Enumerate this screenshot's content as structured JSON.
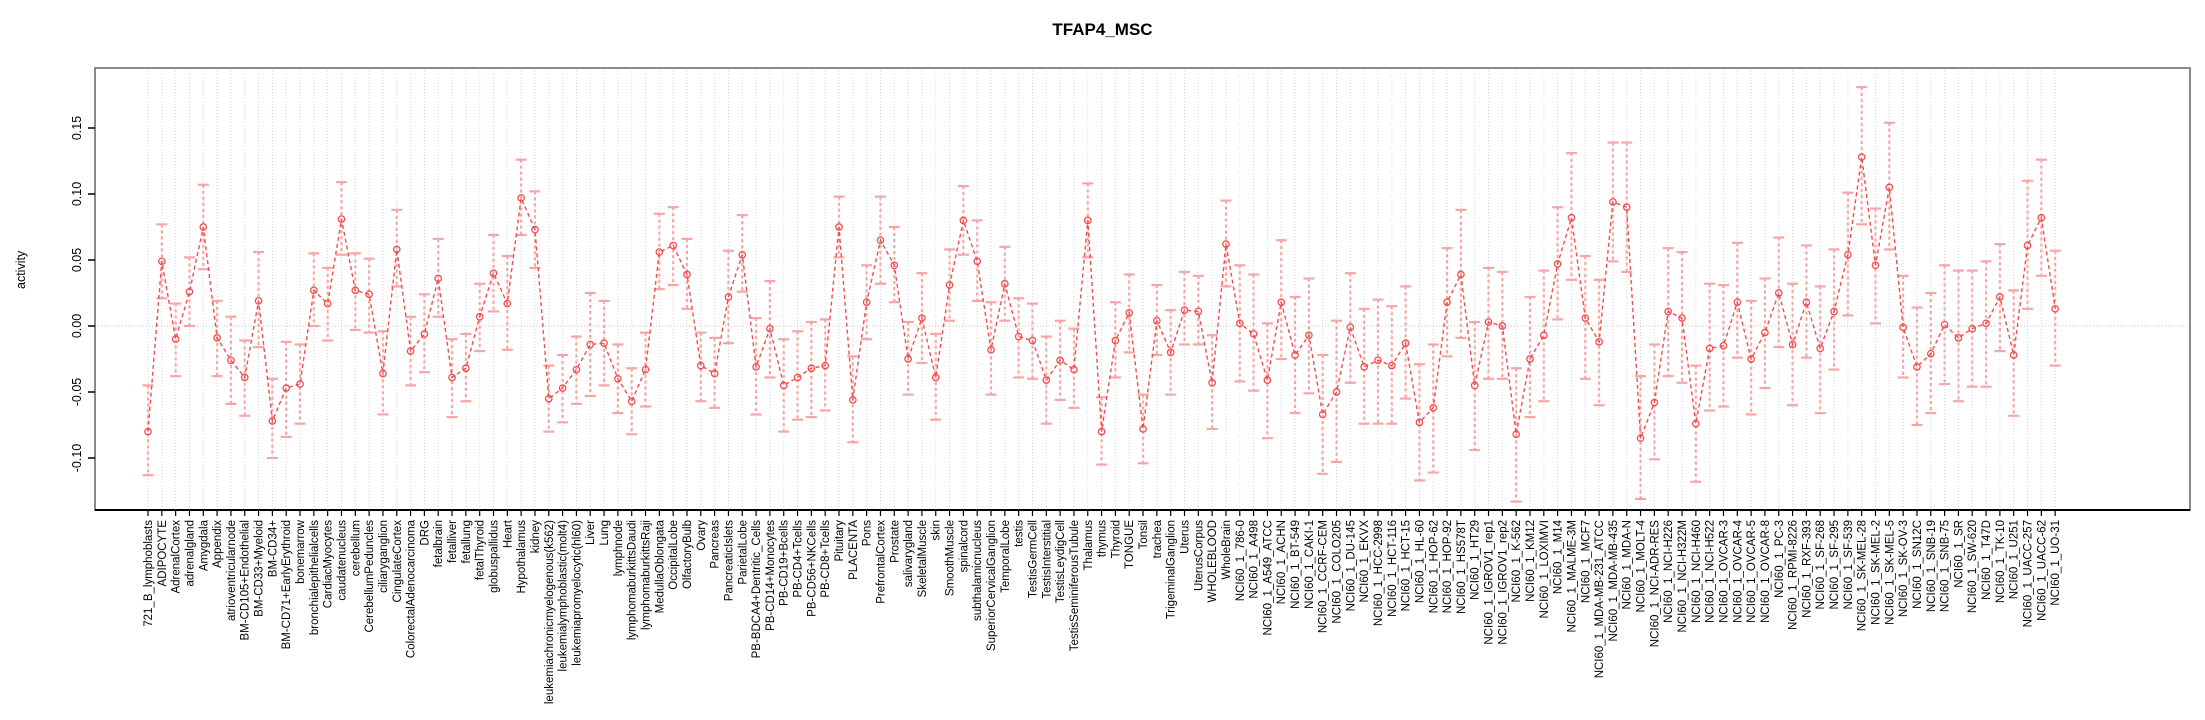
{
  "title": "TFAP4_MSC",
  "colors": {
    "series": "#ef4f4f",
    "error_bar": "#f7a6a6",
    "grid": "#d6d6d6",
    "zero_line": "#c9c9c9",
    "box": "#8a8a8a",
    "axis": "#000000",
    "background": "#ffffff"
  },
  "chart_data": {
    "type": "line",
    "title": "TFAP4_MSC",
    "xlabel": "",
    "ylabel": "activity",
    "ylim": [
      -0.139,
      0.195
    ],
    "yticks": [
      0.15,
      0.1,
      0.05,
      0.0,
      -0.05,
      -0.1
    ],
    "grid": "vertical dotted gridline at every category; dotted horizontal line at y=0",
    "legend": "none",
    "marker": "open-circle",
    "line_style": "dashed",
    "error_bars": true,
    "categories": [
      "721_B_lymphoblasts",
      "ADIPOCYTE",
      "AdrenalCortex",
      "adrenalgland",
      "Amygdala",
      "Appendix",
      "atrioventricularnode",
      "BM-CD105+Endothelial",
      "BM-CD33+Myeloid",
      "BM-CD34+",
      "BM-CD71+EarlyErythroid",
      "bonemarrow",
      "bronchialepithelialcells",
      "CardiacMyocytes",
      "caudatenucleus",
      "cerebellum",
      "CerebellumPeduncles",
      "ciliaryganglion",
      "CingulateCortex",
      "ColorectalAdenocarcinoma",
      "DRG",
      "fetalbrain",
      "fetalliver",
      "fetallung",
      "fetalThyroid",
      "globuspallidus",
      "Heart",
      "Hypothalamus",
      "kidney",
      "leukemiachronicmyelogenous(k562)",
      "leukemialymphoblastic(molt4)",
      "leukemiapromyelocytic(hl60)",
      "Liver",
      "Lung",
      "lymphnode",
      "lymphomaburkittsDaudi",
      "lymphomaburkittsRaji",
      "MedullaOblongata",
      "OccipitalLobe",
      "OlfactoryBulb",
      "Ovary",
      "Pancreas",
      "PancreaticIslets",
      "ParietalLobe",
      "PB-BDCA4+Dentritic_Cells",
      "PB-CD14+Monocytes",
      "PB-CD19+Bcells",
      "PB-CD4+Tcells",
      "PB-CD56+NKCells",
      "PB-CD8+Tcells",
      "Pituitary",
      "PLACENTA",
      "Pons",
      "PrefrontalCortex",
      "Prostate",
      "salivarygland",
      "SkeletalMuscle",
      "skin",
      "SmoothMuscle",
      "spinalcord",
      "subthalamicnucleus",
      "SuperiorCervicalGanglion",
      "TemporalLobe",
      "testis",
      "TestisGermCell",
      "TestisInterstitial",
      "TestisLeydigCell",
      "TestisSeminiferousTubule",
      "Thalamus",
      "thymus",
      "Thyroid",
      "TONGUE",
      "Tonsil",
      "trachea",
      "TrigeminalGanglion",
      "Uterus",
      "UterusCorpus",
      "WHOLEBLOOD",
      "WholeBrain",
      "NCI60_1_786-0",
      "NCI60_1_A498",
      "NCI60_1_A549_ATCC",
      "NCI60_1_ACHN",
      "NCI60_1_BT-549",
      "NCI60_1_CAKI-1",
      "NCI60_1_CCRF-CEM",
      "NCI60_1_COLO205",
      "NCI60_1_DU-145",
      "NCI60_1_EKVX",
      "NCI60_1_HCC-2998",
      "NCI60_1_HCT-116",
      "NCI60_1_HCT-15",
      "NCI60_1_HL-60",
      "NCI60_1_HOP-62",
      "NCI60_1_HOP-92",
      "NCI60_1_HS578T",
      "NCI60_1_HT29",
      "NCI60_1_IGROV1_rep1",
      "NCI60_1_IGROV1_rep2",
      "NCI60_1_K-562",
      "NCI60_1_KM12",
      "NCI60_1_LOXIMVI",
      "NCI60_1_M14",
      "NCI60_1_MALME-3M",
      "NCI60_1_MCF7",
      "NCI60_1_MDA-MB-231_ATCC",
      "NCI60_1_MDA-MB-435",
      "NCI60_1_MDA-N",
      "NCI60_1_MOLT-4",
      "NCI60_1_NCI-ADR-RES",
      "NCI60_1_NCI-H226",
      "NCI60_1_NCI-H322M",
      "NCI60_1_NCI-H460",
      "NCI60_1_NCI-H522",
      "NCI60_1_OVCAR-3",
      "NCI60_1_OVCAR-4",
      "NCI60_1_OVCAR-5",
      "NCI60_1_OVCAR-8",
      "NCI60_1_PC-3",
      "NCI60_1_RPMI-8226",
      "NCI60_1_RXF-393",
      "NCI60_1_SF-268",
      "NCI60_1_SF-295",
      "NCI60_1_SF-539",
      "NCI60_1_SK-MEL-28",
      "NCI60_1_SK-MEL-2",
      "NCI60_1_SK-MEL-5",
      "NCI60_1_SK-OV-3",
      "NCI60_1_SN12C",
      "NCI60_1_SNB-19",
      "NCI60_1_SNB-75",
      "NCI60_1_SR",
      "NCI60_1_SW-620",
      "NCI60_1_T47D",
      "NCI60_1_TK-10",
      "NCI60_1_U251",
      "NCI60_1_UACC-257",
      "NCI60_1_UACC-62",
      "NCI60_1_UO-31"
    ],
    "series": [
      {
        "name": "activity",
        "values": [
          -0.08,
          0.049,
          -0.01,
          0.026,
          0.075,
          -0.009,
          -0.026,
          -0.039,
          0.019,
          -0.072,
          -0.047,
          -0.044,
          0.027,
          0.017,
          0.081,
          0.027,
          0.024,
          -0.036,
          0.058,
          -0.019,
          -0.006,
          0.036,
          -0.039,
          -0.032,
          0.007,
          0.04,
          0.017,
          0.097,
          0.073,
          -0.055,
          -0.047,
          -0.033,
          -0.014,
          -0.013,
          -0.04,
          -0.057,
          -0.033,
          0.056,
          0.061,
          0.039,
          -0.03,
          -0.036,
          0.022,
          0.054,
          -0.031,
          -0.002,
          -0.045,
          -0.039,
          -0.032,
          -0.03,
          0.075,
          -0.056,
          0.018,
          0.065,
          0.046,
          -0.025,
          0.006,
          -0.039,
          0.031,
          0.08,
          0.049,
          -0.018,
          0.032,
          -0.008,
          -0.011,
          -0.041,
          -0.026,
          -0.033,
          0.08,
          -0.08,
          -0.011,
          0.01,
          -0.078,
          0.004,
          -0.02,
          0.012,
          0.011,
          -0.043,
          0.062,
          0.002,
          -0.006,
          -0.041,
          0.018,
          -0.022,
          -0.007,
          -0.067,
          -0.05,
          -0.001,
          -0.031,
          -0.026,
          -0.03,
          -0.013,
          -0.073,
          -0.062,
          0.018,
          0.039,
          -0.045,
          0.003,
          0.0,
          -0.082,
          -0.025,
          -0.007,
          0.047,
          0.082,
          0.006,
          -0.012,
          0.094,
          0.09,
          -0.085,
          -0.058,
          0.011,
          0.006,
          -0.074,
          -0.017,
          -0.015,
          0.018,
          -0.025,
          -0.005,
          0.025,
          -0.014,
          0.018,
          -0.017,
          0.011,
          0.054,
          0.128,
          0.046,
          0.105,
          -0.001,
          -0.031,
          -0.021,
          0.001,
          -0.009,
          -0.002,
          0.002,
          0.022,
          -0.022,
          0.061,
          0.082,
          0.013
        ],
        "error_low": [
          -0.113,
          0.021,
          -0.038,
          0.0,
          0.043,
          -0.038,
          -0.059,
          -0.068,
          -0.016,
          -0.1,
          -0.084,
          -0.074,
          0.0,
          -0.011,
          0.054,
          -0.003,
          -0.005,
          -0.067,
          0.03,
          -0.045,
          -0.035,
          0.007,
          -0.069,
          -0.057,
          -0.019,
          0.011,
          -0.018,
          0.069,
          0.044,
          -0.08,
          -0.073,
          -0.059,
          -0.053,
          -0.045,
          -0.066,
          -0.082,
          -0.061,
          0.028,
          0.031,
          0.013,
          -0.057,
          -0.062,
          -0.013,
          0.026,
          -0.067,
          -0.039,
          -0.08,
          -0.071,
          -0.069,
          -0.064,
          0.052,
          -0.088,
          -0.01,
          0.032,
          0.018,
          -0.052,
          -0.028,
          -0.071,
          0.004,
          0.054,
          0.019,
          -0.052,
          0.004,
          -0.039,
          -0.04,
          -0.074,
          -0.056,
          -0.062,
          0.052,
          -0.105,
          -0.039,
          -0.02,
          -0.104,
          -0.022,
          -0.052,
          -0.014,
          -0.014,
          -0.078,
          0.03,
          -0.042,
          -0.049,
          -0.085,
          -0.025,
          -0.066,
          -0.051,
          -0.112,
          -0.103,
          -0.043,
          -0.074,
          -0.074,
          -0.074,
          -0.055,
          -0.117,
          -0.111,
          -0.023,
          -0.009,
          -0.094,
          -0.04,
          -0.04,
          -0.133,
          -0.069,
          -0.057,
          0.005,
          0.035,
          -0.04,
          -0.06,
          0.049,
          0.041,
          -0.131,
          -0.101,
          -0.038,
          -0.043,
          -0.118,
          -0.064,
          -0.061,
          -0.024,
          -0.067,
          -0.047,
          -0.016,
          -0.06,
          -0.024,
          -0.066,
          -0.033,
          0.008,
          0.077,
          0.002,
          0.058,
          -0.039,
          -0.075,
          -0.066,
          -0.044,
          -0.057,
          -0.046,
          -0.046,
          -0.019,
          -0.068,
          0.013,
          0.038,
          -0.03
        ],
        "error_high": [
          -0.045,
          0.077,
          0.017,
          0.052,
          0.107,
          0.019,
          0.007,
          -0.011,
          0.056,
          -0.04,
          -0.012,
          -0.014,
          0.055,
          0.044,
          0.109,
          0.055,
          0.051,
          -0.004,
          0.088,
          0.007,
          0.024,
          0.066,
          -0.01,
          -0.006,
          0.032,
          0.069,
          0.053,
          0.126,
          0.102,
          -0.03,
          -0.022,
          -0.008,
          0.025,
          0.019,
          -0.014,
          -0.032,
          -0.005,
          0.085,
          0.09,
          0.066,
          -0.005,
          -0.009,
          0.057,
          0.084,
          0.006,
          0.034,
          -0.01,
          -0.004,
          0.003,
          0.005,
          0.098,
          -0.023,
          0.046,
          0.098,
          0.075,
          0.003,
          0.04,
          -0.006,
          0.058,
          0.106,
          0.08,
          0.018,
          0.06,
          0.021,
          0.017,
          -0.008,
          0.004,
          -0.002,
          0.108,
          -0.054,
          0.018,
          0.039,
          -0.052,
          0.031,
          0.012,
          0.041,
          0.038,
          -0.007,
          0.095,
          0.046,
          0.039,
          0.002,
          0.065,
          0.022,
          0.036,
          -0.022,
          0.004,
          0.04,
          0.013,
          0.02,
          0.015,
          0.03,
          -0.029,
          -0.014,
          0.059,
          0.088,
          0.003,
          0.044,
          0.041,
          -0.032,
          0.022,
          0.042,
          0.09,
          0.131,
          0.053,
          0.035,
          0.139,
          0.139,
          -0.038,
          -0.014,
          0.059,
          0.056,
          -0.03,
          0.032,
          0.031,
          0.063,
          0.019,
          0.036,
          0.067,
          0.032,
          0.061,
          0.03,
          0.058,
          0.101,
          0.181,
          0.089,
          0.154,
          0.038,
          0.014,
          0.025,
          0.046,
          0.042,
          0.042,
          0.049,
          0.062,
          0.027,
          0.11,
          0.126,
          0.057
        ]
      }
    ]
  }
}
